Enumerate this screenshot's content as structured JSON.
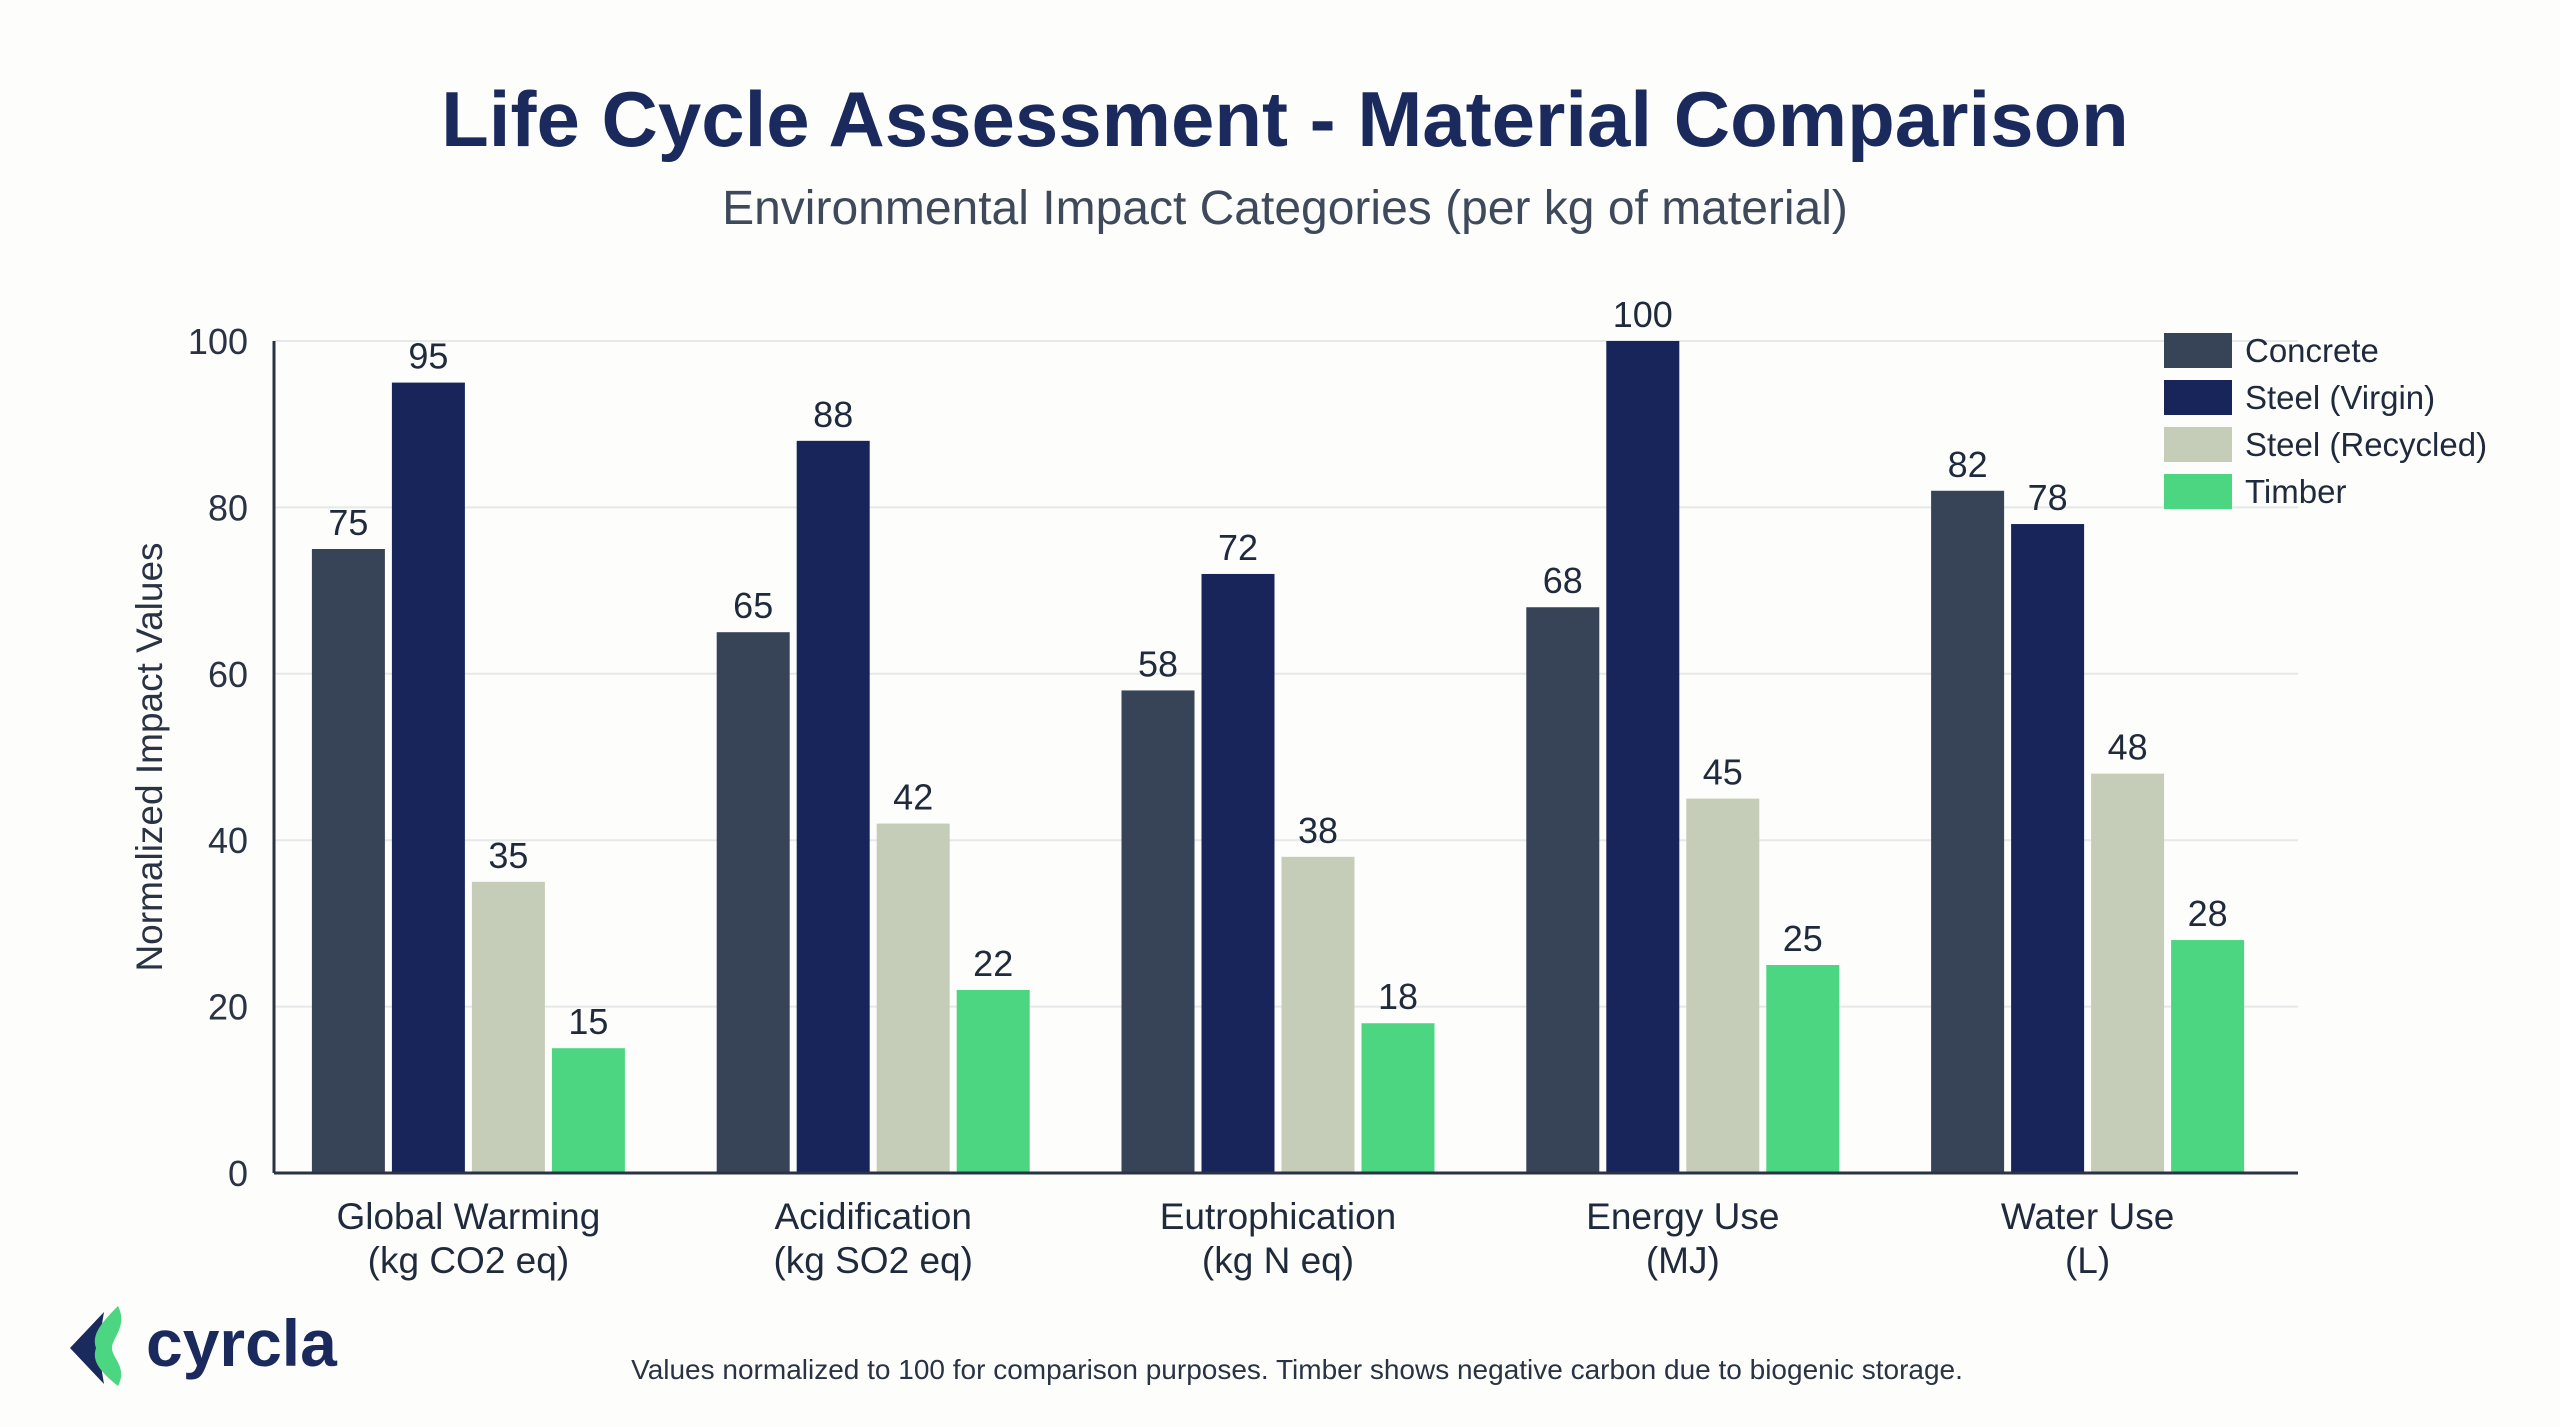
{
  "chart_data": {
    "type": "bar",
    "title": "Life Cycle Assessment - Material Comparison",
    "subtitle": "Environmental Impact Categories (per kg of material)",
    "xlabel": "",
    "ylabel": "Normalized Impact Values",
    "ylim": [
      0,
      100
    ],
    "yticks": [
      0,
      20,
      40,
      60,
      80,
      100
    ],
    "grid": true,
    "legend_placement": "top-right",
    "categories": [
      [
        "Global Warming",
        "(kg CO2 eq)"
      ],
      [
        "Acidification",
        "(kg SO2 eq)"
      ],
      [
        "Eutrophication",
        "(kg N eq)"
      ],
      [
        "Energy Use",
        "(MJ)"
      ],
      [
        "Water Use",
        "(L)"
      ]
    ],
    "series": [
      {
        "name": "Concrete",
        "color": "#374357",
        "values": [
          75,
          65,
          58,
          68,
          82
        ]
      },
      {
        "name": "Steel (Virgin)",
        "color": "#17255a",
        "values": [
          95,
          88,
          72,
          100,
          78
        ]
      },
      {
        "name": "Steel (Recycled)",
        "color": "#c5cdb8",
        "values": [
          35,
          42,
          38,
          45,
          48
        ]
      },
      {
        "name": "Timber",
        "color": "#4cd681",
        "values": [
          15,
          22,
          18,
          25,
          28
        ]
      }
    ]
  },
  "footnote": "Values normalized to 100 for comparison purposes. Timber shows negative carbon due to biogenic storage.",
  "logo": {
    "text": "cyrcla",
    "colors": {
      "dark": "#1b2a5c",
      "green": "#4cd681"
    }
  }
}
